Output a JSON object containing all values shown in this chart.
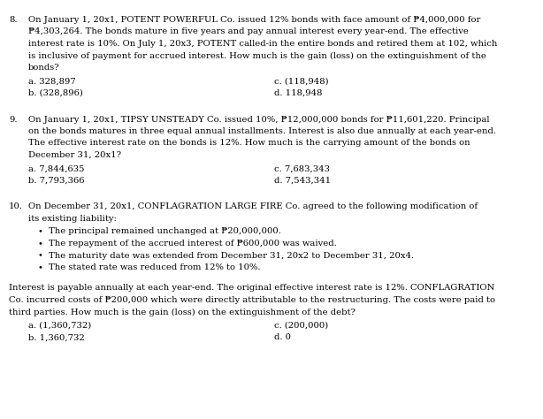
{
  "bg_color": "#ffffff",
  "text_color": "#000000",
  "font_family": "DejaVu Serif",
  "font_size": 7.2,
  "q8_number": "8.",
  "q8_lines": [
    "On January 1, 20x1, POTENT POWERFUL Co. issued 12% bonds with face amount of ₱4,000,000 for",
    "₱4,303,264. The bonds mature in five years and pay annual interest every year-end. The effective",
    "interest rate is 10%. On July 1, 20x3, POTENT called-in the entire bonds and retired them at 102, which",
    "is inclusive of payment for accrued interest. How much is the gain (loss) on the extinguishment of the",
    "bonds?"
  ],
  "q8_a": "a. 328,897",
  "q8_b": "b. (328,896)",
  "q8_c": "c. (118,948)",
  "q8_d": "d. 118,948",
  "q9_number": "9.",
  "q9_lines": [
    "On January 1, 20x1, TIPSY UNSTEADY Co. issued 10%, ₱12,000,000 bonds for ₱11,601,220. Principal",
    "on the bonds matures in three equal annual installments. Interest is also due annually at each year-end.",
    "The effective interest rate on the bonds is 12%. How much is the carrying amount of the bonds on",
    "December 31, 20x1?"
  ],
  "q9_a": "a. 7,844,635",
  "q9_b": "b. 7,793,366",
  "q9_c": "c. 7,683,343",
  "q9_d": "d. 7,543,341",
  "q10_number": "10.",
  "q10_lines": [
    "On December 31, 20x1, CONFLAGRATION LARGE FIRE Co. agreed to the following modification of",
    "its existing liability:"
  ],
  "q10_bullet1": "The principal remained unchanged at ₱20,000,000.",
  "q10_bullet2": "The repayment of the accrued interest of ₱600,000 was waived.",
  "q10_bullet3": "The maturity date was extended from December 31, 20x2 to December 31, 20x4.",
  "q10_bullet4": "The stated rate was reduced from 12% to 10%.",
  "q10_extra_lines": [
    "Interest is payable annually at each year-end. The original effective interest rate is 12%. CONFLAGRATION",
    "Co. incurred costs of ₱200,000 which were directly attributable to the restructuring. The costs were paid to",
    "third parties. How much is the gain (loss) on the extinguishment of the debt?"
  ],
  "q10_a": "a. (1,360,732)",
  "q10_b": "b. 1,360,732",
  "q10_c": "c. (200,000)",
  "q10_d": "d. 0"
}
